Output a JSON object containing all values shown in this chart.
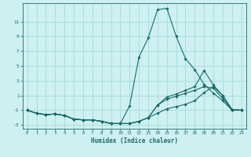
{
  "xlabel": "Humidex (Indice chaleur)",
  "ylabel": "",
  "xlim": [
    -0.5,
    23.5
  ],
  "ylim": [
    -3.5,
    13.5
  ],
  "yticks": [
    -3,
    -1,
    1,
    3,
    5,
    7,
    9,
    11
  ],
  "xticks": [
    0,
    1,
    2,
    3,
    4,
    5,
    6,
    7,
    8,
    9,
    10,
    11,
    12,
    13,
    14,
    15,
    16,
    17,
    18,
    19,
    20,
    21,
    22,
    23
  ],
  "bg_color": "#cef0f0",
  "grid_color": "#aadddd",
  "line_color": "#1a6b6b",
  "series": [
    {
      "x": [
        0,
        1,
        2,
        3,
        4,
        5,
        6,
        7,
        8,
        9,
        10,
        11,
        12,
        13,
        14,
        15,
        16,
        17,
        18,
        19,
        20,
        21,
        22,
        23
      ],
      "y": [
        -1.0,
        -1.4,
        -1.6,
        -1.5,
        -1.7,
        -2.2,
        -2.3,
        -2.3,
        -2.5,
        -2.8,
        -2.8,
        -0.4,
        6.2,
        8.8,
        12.6,
        12.8,
        9.0,
        6.0,
        4.5,
        2.5,
        1.3,
        0.3,
        -1.0,
        -1.0
      ]
    },
    {
      "x": [
        0,
        1,
        2,
        3,
        4,
        5,
        6,
        7,
        8,
        9,
        10,
        11,
        12,
        13,
        14,
        15,
        16,
        17,
        18,
        19,
        20,
        21,
        22,
        23
      ],
      "y": [
        -1.0,
        -1.4,
        -1.6,
        -1.5,
        -1.7,
        -2.2,
        -2.3,
        -2.3,
        -2.5,
        -2.8,
        -2.8,
        -2.8,
        -2.5,
        -2.0,
        -1.4,
        -0.8,
        -0.5,
        -0.2,
        0.3,
        1.4,
        2.2,
        1.0,
        -0.9,
        -1.0
      ]
    },
    {
      "x": [
        0,
        1,
        2,
        3,
        4,
        5,
        6,
        7,
        8,
        9,
        10,
        11,
        12,
        13,
        14,
        15,
        16,
        17,
        18,
        19,
        20,
        21,
        22,
        23
      ],
      "y": [
        -1.0,
        -1.4,
        -1.6,
        -1.5,
        -1.7,
        -2.2,
        -2.3,
        -2.3,
        -2.5,
        -2.8,
        -2.8,
        -2.8,
        -2.5,
        -2.0,
        -0.3,
        0.8,
        1.2,
        1.7,
        2.2,
        4.4,
        2.4,
        1.0,
        -0.9,
        -1.0
      ]
    },
    {
      "x": [
        0,
        1,
        2,
        3,
        4,
        5,
        6,
        7,
        8,
        9,
        10,
        11,
        12,
        13,
        14,
        15,
        16,
        17,
        18,
        19,
        20,
        21,
        22,
        23
      ],
      "y": [
        -1.0,
        -1.4,
        -1.6,
        -1.5,
        -1.7,
        -2.2,
        -2.3,
        -2.3,
        -2.5,
        -2.8,
        -2.8,
        -2.8,
        -2.5,
        -2.0,
        -0.3,
        0.5,
        0.9,
        1.3,
        1.7,
        2.2,
        2.0,
        0.6,
        -0.9,
        -1.0
      ]
    }
  ]
}
